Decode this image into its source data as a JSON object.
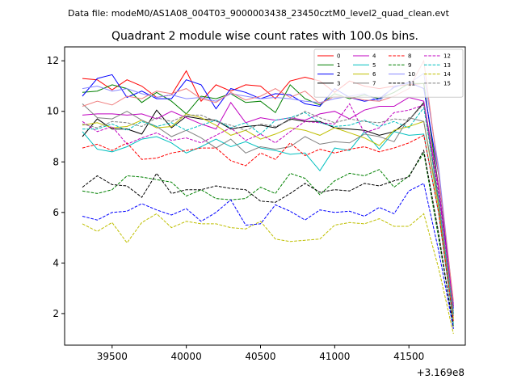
{
  "chart_data": {
    "type": "line",
    "suptitle": "Data file: modeM0/AS1A08_004T03_9000003438_23450cztM0_level2_quad_clean.evt",
    "title": "Quadrant 2 module wise count rates with 100.0s bins.",
    "xlabel": "",
    "ylabel": "",
    "x_offset_label": "+3.169e8",
    "xlim": [
      39180,
      41880
    ],
    "ylim": [
      0.75,
      12.55
    ],
    "x_ticks": [
      39500,
      40000,
      40500,
      41000,
      41500
    ],
    "y_ticks": [
      2,
      4,
      6,
      8,
      10,
      12
    ],
    "legend_position": "top-right",
    "x": [
      39300,
      39400,
      39500,
      39600,
      39700,
      39800,
      39900,
      40000,
      40100,
      40200,
      40300,
      40400,
      40500,
      40600,
      40700,
      40800,
      40900,
      41000,
      41100,
      41200,
      41300,
      41400,
      41500,
      41600,
      41700,
      41800
    ],
    "series": [
      {
        "name": "0",
        "color": "#ff0000",
        "dash": "solid",
        "values": [
          11.3,
          11.25,
          10.85,
          11.25,
          11.0,
          10.55,
          10.65,
          11.6,
          10.4,
          11.05,
          10.8,
          11.05,
          11.0,
          10.5,
          11.2,
          11.35,
          11.2,
          10.75,
          11.2,
          11.0,
          10.9,
          11.0,
          11.05,
          11.1,
          7.0,
          2.4
        ]
      },
      {
        "name": "1",
        "color": "#008000",
        "dash": "solid",
        "values": [
          10.75,
          10.8,
          11.05,
          10.9,
          10.35,
          10.75,
          10.4,
          9.9,
          10.6,
          10.5,
          10.7,
          10.35,
          10.4,
          9.95,
          11.05,
          10.5,
          10.25,
          10.7,
          10.5,
          10.65,
          10.5,
          10.75,
          11.1,
          11.1,
          7.0,
          2.3
        ]
      },
      {
        "name": "2",
        "color": "#0000ff",
        "dash": "solid",
        "values": [
          10.6,
          11.3,
          11.45,
          10.55,
          10.8,
          10.5,
          10.5,
          11.25,
          11.05,
          10.1,
          10.9,
          10.75,
          10.5,
          10.7,
          10.65,
          10.3,
          10.2,
          10.9,
          10.55,
          10.4,
          10.5,
          10.95,
          11.15,
          10.9,
          7.5,
          2.2
        ]
      },
      {
        "name": "3",
        "color": "#000000",
        "dash": "solid",
        "values": [
          9.0,
          9.7,
          9.3,
          9.3,
          9.1,
          10.05,
          9.35,
          9.8,
          9.7,
          9.65,
          9.3,
          9.4,
          9.45,
          9.35,
          9.7,
          9.6,
          9.6,
          9.35,
          9.3,
          9.25,
          9.05,
          9.2,
          9.65,
          10.35,
          6.5,
          2.0
        ]
      },
      {
        "name": "4",
        "color": "#c000c0",
        "dash": "solid",
        "values": [
          9.85,
          9.9,
          9.9,
          9.85,
          9.9,
          9.7,
          10.0,
          9.75,
          9.5,
          9.3,
          10.35,
          9.55,
          9.75,
          9.65,
          9.75,
          9.65,
          9.9,
          10.0,
          9.7,
          10.05,
          10.2,
          10.2,
          10.55,
          10.4,
          7.0,
          2.3
        ]
      },
      {
        "name": "5",
        "color": "#00bfbf",
        "dash": "solid",
        "values": [
          9.2,
          8.5,
          8.4,
          8.6,
          8.9,
          9.0,
          8.75,
          8.35,
          8.6,
          8.9,
          8.6,
          8.8,
          8.55,
          8.45,
          8.3,
          8.35,
          7.65,
          8.55,
          8.45,
          9.2,
          8.5,
          9.2,
          9.05,
          9.1,
          6.0,
          1.6
        ]
      },
      {
        "name": "6",
        "color": "#bfbf00",
        "dash": "solid",
        "values": [
          9.45,
          9.55,
          9.35,
          9.4,
          9.65,
          9.35,
          9.4,
          9.9,
          9.75,
          9.45,
          9.05,
          9.25,
          8.9,
          9.1,
          9.35,
          9.25,
          9.05,
          9.35,
          9.15,
          8.95,
          8.65,
          9.25,
          9.4,
          9.6,
          6.2,
          1.8
        ]
      },
      {
        "name": "7",
        "color": "#808080",
        "dash": "solid",
        "values": [
          10.3,
          9.75,
          9.7,
          10.0,
          9.65,
          9.4,
          9.0,
          9.25,
          8.95,
          8.55,
          8.9,
          8.35,
          8.6,
          8.5,
          8.6,
          9.0,
          8.7,
          8.8,
          8.75,
          9.1,
          9.0,
          8.8,
          9.75,
          9.6,
          6.4,
          1.9
        ]
      },
      {
        "name": "8",
        "color": "#ff0000",
        "dash": "dashed",
        "values": [
          8.55,
          8.7,
          8.45,
          8.75,
          8.1,
          8.15,
          8.35,
          8.45,
          8.55,
          8.55,
          8.05,
          7.85,
          8.35,
          8.1,
          8.75,
          8.25,
          8.5,
          8.35,
          8.5,
          8.6,
          8.4,
          8.55,
          8.75,
          9.05,
          6.0,
          1.7
        ]
      },
      {
        "name": "9",
        "color": "#008000",
        "dash": "dashed",
        "values": [
          6.85,
          6.75,
          6.9,
          7.45,
          7.4,
          7.3,
          7.2,
          6.65,
          6.9,
          6.55,
          6.5,
          6.55,
          7.0,
          6.75,
          7.55,
          7.35,
          6.7,
          7.25,
          7.55,
          7.45,
          7.7,
          7.0,
          7.45,
          8.35,
          5.0,
          1.5
        ]
      },
      {
        "name": "10",
        "color": "#8888ff",
        "dash": "solid",
        "values": [
          10.9,
          11.0,
          10.8,
          10.9,
          10.7,
          10.55,
          10.65,
          10.5,
          10.55,
          10.4,
          10.7,
          10.6,
          10.5,
          10.55,
          10.5,
          10.4,
          10.35,
          10.5,
          10.6,
          10.7,
          10.4,
          11.0,
          11.1,
          11.5,
          7.8,
          2.4
        ]
      },
      {
        "name": "11",
        "color": "#000000",
        "dash": "dashed",
        "values": [
          7.0,
          7.45,
          7.1,
          7.05,
          6.6,
          7.55,
          6.75,
          6.9,
          6.9,
          7.05,
          6.95,
          6.9,
          6.45,
          6.4,
          6.75,
          7.15,
          6.8,
          6.9,
          6.85,
          7.15,
          7.05,
          7.25,
          7.4,
          8.45,
          5.2,
          1.4
        ]
      },
      {
        "name": "12",
        "color": "#c000c0",
        "dash": "dashed",
        "values": [
          9.6,
          9.2,
          9.4,
          8.7,
          8.95,
          9.15,
          8.85,
          8.95,
          8.75,
          9.05,
          9.35,
          8.85,
          9.1,
          8.75,
          9.2,
          9.6,
          9.55,
          9.5,
          10.3,
          9.15,
          9.35,
          9.95,
          10.05,
          10.25,
          6.8,
          2.3
        ]
      },
      {
        "name": "13",
        "color": "#00bfbf",
        "dash": "dashed",
        "values": [
          9.3,
          9.3,
          9.5,
          9.25,
          9.6,
          9.4,
          9.55,
          9.25,
          9.45,
          9.65,
          9.35,
          9.55,
          9.1,
          9.65,
          9.75,
          9.95,
          9.55,
          9.4,
          9.45,
          9.65,
          9.4,
          9.6,
          9.35,
          10.15,
          6.5,
          2.0
        ]
      },
      {
        "name": "14",
        "color": "#bfbf00",
        "dash": "dashed",
        "values": [
          5.55,
          5.25,
          5.6,
          4.8,
          5.6,
          5.95,
          5.4,
          5.65,
          5.55,
          5.55,
          5.4,
          5.35,
          5.65,
          4.95,
          4.85,
          4.9,
          4.95,
          5.5,
          5.6,
          5.55,
          5.75,
          5.45,
          5.45,
          5.95,
          3.8,
          1.2
        ]
      },
      {
        "name": "15",
        "color": "#808080",
        "dash": "dashed",
        "values": [
          9.5,
          9.35,
          9.6,
          9.55,
          9.4,
          9.75,
          9.6,
          9.85,
          9.85,
          9.6,
          9.45,
          9.25,
          9.5,
          9.4,
          9.65,
          10.0,
          9.75,
          9.55,
          9.7,
          9.6,
          9.55,
          9.7,
          9.65,
          10.3,
          6.6,
          2.1
        ]
      },
      {
        "name": "",
        "color": "#0000ff",
        "dash": "dashed",
        "values": [
          5.85,
          5.7,
          6.0,
          6.05,
          6.35,
          6.1,
          5.9,
          6.15,
          5.65,
          6.0,
          6.5,
          5.5,
          5.55,
          6.3,
          6.05,
          5.7,
          6.1,
          6.0,
          6.05,
          5.85,
          6.2,
          5.95,
          6.85,
          7.15,
          4.5,
          1.4
        ]
      },
      {
        "name": "",
        "color": "#f08080",
        "dash": "solid",
        "values": [
          10.2,
          10.4,
          10.25,
          10.6,
          10.5,
          10.8,
          10.7,
          10.9,
          10.5,
          10.35,
          10.75,
          10.45,
          10.6,
          10.9,
          10.55,
          10.8,
          10.3,
          10.6,
          10.55,
          10.45,
          10.4,
          10.6,
          10.9,
          12.0,
          7.5,
          2.5
        ]
      }
    ]
  }
}
